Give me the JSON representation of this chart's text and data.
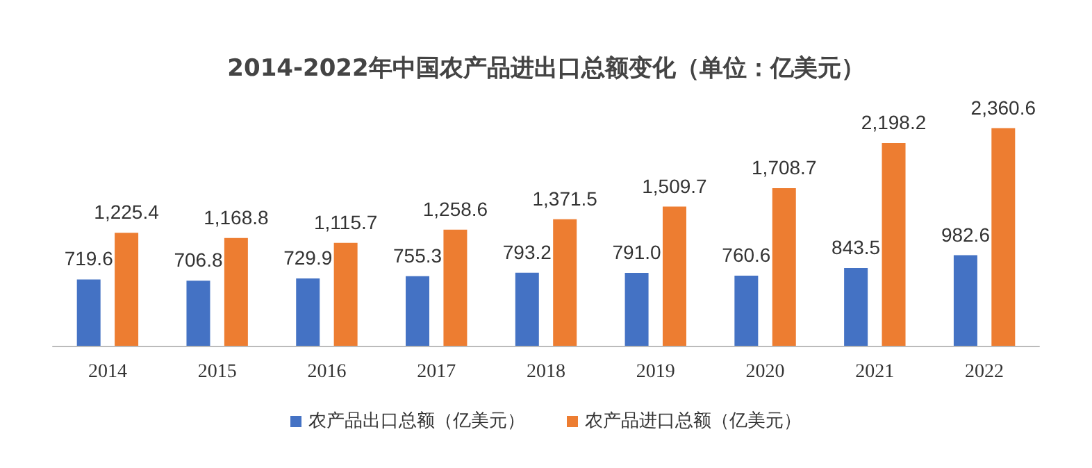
{
  "chart_data": {
    "type": "bar",
    "title": "2014-2022年中国农产品进出口总额变化（单位：亿美元）",
    "categories": [
      "2014",
      "2015",
      "2016",
      "2017",
      "2018",
      "2019",
      "2020",
      "2021",
      "2022"
    ],
    "series": [
      {
        "name": "农产品出口总额（亿美元）",
        "color": "#4472c4",
        "values": [
          719.6,
          706.8,
          729.9,
          755.3,
          793.2,
          791.0,
          760.6,
          843.5,
          982.6
        ],
        "value_labels": [
          "719.6",
          "706.8",
          "729.9",
          "755.3",
          "793.2",
          "791.0",
          "760.6",
          "843.5",
          "982.6"
        ]
      },
      {
        "name": "农产品进口总额（亿美元）",
        "color": "#ed7d31",
        "values": [
          1225.4,
          1168.8,
          1115.7,
          1258.6,
          1371.5,
          1509.7,
          1708.7,
          2198.2,
          2360.6
        ],
        "value_labels": [
          "1,225.4",
          "1,168.8",
          "1,115.7",
          "1,258.6",
          "1,371.5",
          "1,509.7",
          "1,708.7",
          "2,198.2",
          "2,360.6"
        ]
      }
    ],
    "legend": "bottom",
    "grid": false
  }
}
